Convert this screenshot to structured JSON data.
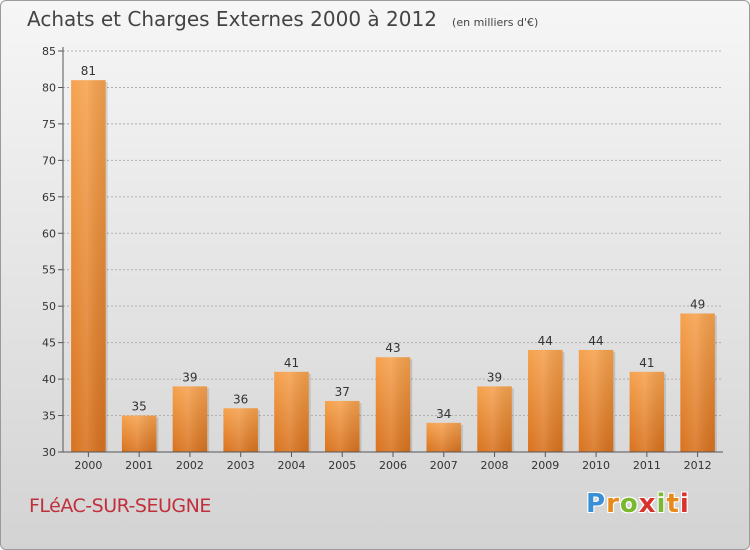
{
  "title": "Achats et Charges Externes 2000 à 2012",
  "unit": "(en milliers d'€)",
  "commune": "FLéAC-SUR-SEUGNE",
  "logo": {
    "letters": [
      "P",
      "r",
      "o",
      "x",
      "i",
      "t",
      "i"
    ],
    "colors": [
      "#3b8fd6",
      "#e88a1a",
      "#7ab82e",
      "#d8322c",
      "#7ab82e",
      "#e88a1a",
      "#d8322c"
    ]
  },
  "colors": {
    "bar_light": "#f6a24e",
    "bar_dark": "#d8721e",
    "grid": "#b0b0b0",
    "axis": "#555555",
    "title": "#444444",
    "commune": "#c0303c"
  },
  "chart_data": {
    "type": "bar",
    "categories": [
      "2000",
      "2001",
      "2002",
      "2003",
      "2004",
      "2005",
      "2006",
      "2007",
      "2008",
      "2009",
      "2010",
      "2011",
      "2012"
    ],
    "values": [
      81,
      35,
      39,
      36,
      41,
      37,
      43,
      34,
      39,
      44,
      44,
      41,
      49
    ],
    "data_labels": [
      "81",
      "35",
      "39",
      "36",
      "41",
      "37",
      "43",
      "34",
      "39",
      "44",
      "44",
      "41",
      "49"
    ],
    "yticks": [
      "30",
      "35",
      "40",
      "45",
      "50",
      "55",
      "60",
      "65",
      "70",
      "75",
      "80",
      "85"
    ],
    "ylim": [
      30,
      85
    ],
    "grid": true
  }
}
